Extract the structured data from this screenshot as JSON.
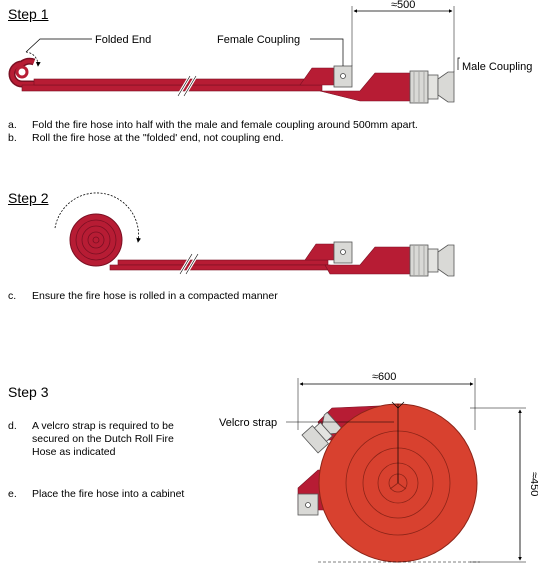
{
  "colors": {
    "hose": "#b71c34",
    "hose_edge": "#7a0f22",
    "roll": "#d8412f",
    "coupling": "#d9d9d6",
    "line": "#000000"
  },
  "step1": {
    "title": "Step 1",
    "labels": {
      "folded_end": "Folded End",
      "female_coupling": "Female Coupling",
      "male_coupling": "Male Coupling",
      "distance": "≈500"
    },
    "instructions": [
      {
        "key": "a.",
        "text": "Fold the fire hose into half with the male and female coupling around 500mm apart."
      },
      {
        "key": "b.",
        "text": "Roll the fire hose at the \"folded' end, not coupling end."
      }
    ]
  },
  "step2": {
    "title": "Step 2",
    "instructions": [
      {
        "key": "c.",
        "text": "Ensure the fire hose is rolled in a compacted manner"
      }
    ]
  },
  "step3": {
    "title": "Step 3",
    "labels": {
      "velcro_strap": "Velcro strap",
      "width": "≈600",
      "height": "≈450"
    },
    "instructions": [
      {
        "key": "d.",
        "lines": [
          "A velcro strap is required to be",
          "secured on the Dutch Roll Fire",
          "Hose as indicated"
        ]
      },
      {
        "key": "e.",
        "text": "Place the fire hose into a cabinet"
      }
    ]
  }
}
